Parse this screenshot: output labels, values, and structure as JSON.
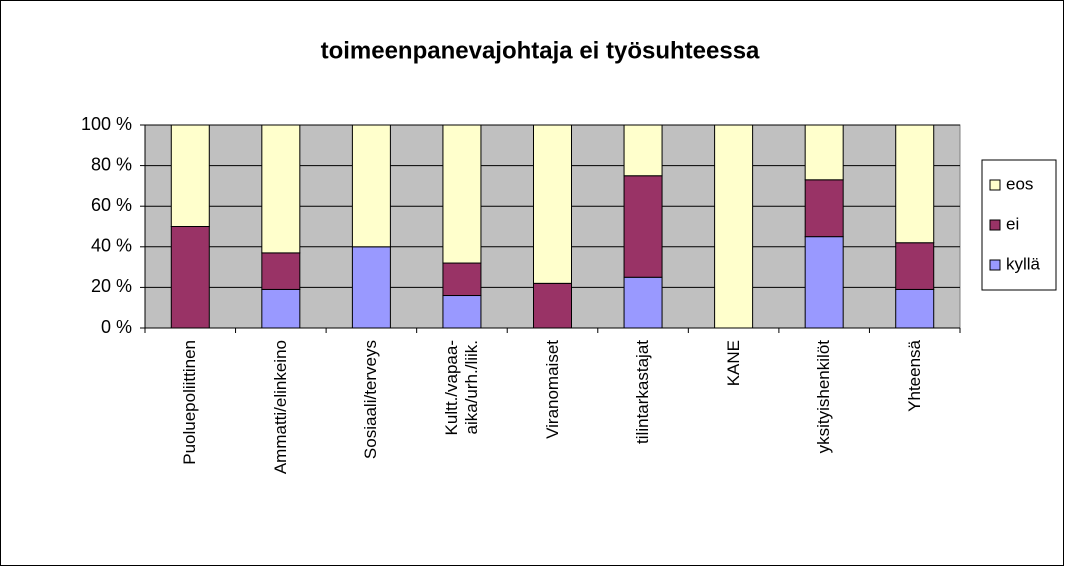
{
  "chart_data": {
    "type": "stacked_bar_100",
    "title": "toimeenpanevajohtaja ei työsuhteessa",
    "categories": [
      "Puoluepoliittinen",
      "Ammatti/elinkeino",
      "Sosiaali/terveys",
      "Kultt./vapaa-\naika/urh./liik.",
      "Viranomaiset",
      "tilintarkastajat",
      "KANE",
      "yksityishenkilöt",
      "Yhteensä"
    ],
    "series": [
      {
        "name": "kyllä",
        "color": "#9999ff",
        "values": [
          0,
          19,
          40,
          16,
          0,
          25,
          0,
          45,
          19
        ]
      },
      {
        "name": "ei",
        "color": "#993366",
        "values": [
          50,
          18,
          0,
          16,
          22,
          50,
          0,
          28,
          23
        ]
      },
      {
        "name": "eos",
        "color": "#ffffcc",
        "values": [
          50,
          63,
          60,
          68,
          78,
          25,
          100,
          27,
          58
        ]
      }
    ],
    "ylim": [
      0,
      100
    ],
    "yticks": [
      {
        "value": 0,
        "label": "0 %"
      },
      {
        "value": 20,
        "label": "20 %"
      },
      {
        "value": 40,
        "label": "40 %"
      },
      {
        "value": 60,
        "label": "60 %"
      },
      {
        "value": 80,
        "label": "80 %"
      },
      {
        "value": 100,
        "label": "100 %"
      }
    ],
    "grid": true,
    "legend": "right"
  }
}
